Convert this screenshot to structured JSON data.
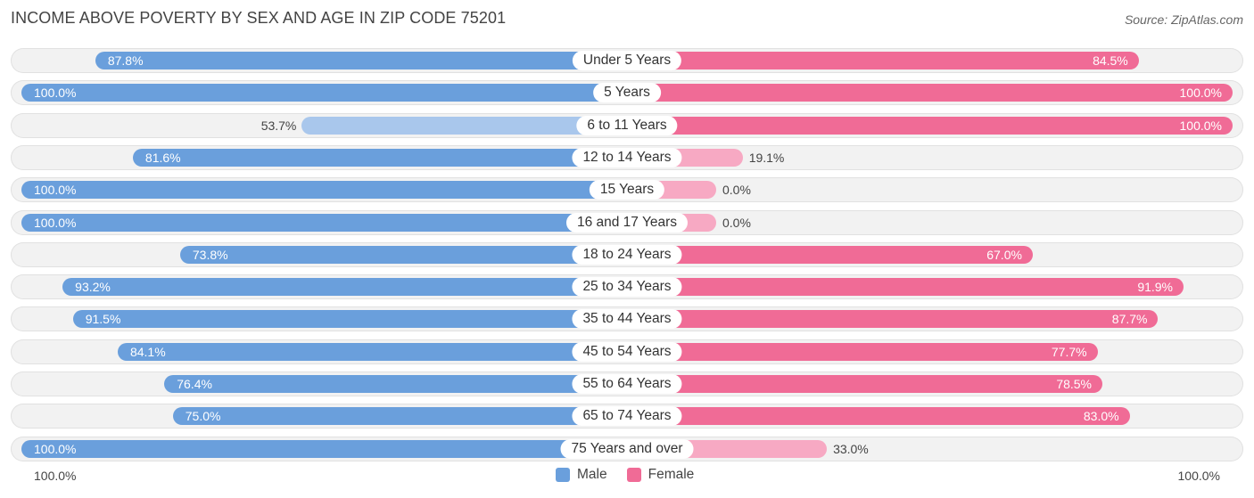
{
  "chart_data": {
    "type": "bar",
    "orientation": "horizontal-diverging",
    "title": "INCOME ABOVE POVERTY BY SEX AND AGE IN ZIP CODE 75201",
    "source": "Source: ZipAtlas.com",
    "categories": [
      "Under 5 Years",
      "5 Years",
      "6 to 11 Years",
      "12 to 14 Years",
      "15 Years",
      "16 and 17 Years",
      "18 to 24 Years",
      "25 to 34 Years",
      "35 to 44 Years",
      "45 to 54 Years",
      "55 to 64 Years",
      "65 to 74 Years",
      "75 Years and over"
    ],
    "series": [
      {
        "name": "Male",
        "color": "#6a9fdc",
        "values": [
          87.8,
          100.0,
          53.7,
          81.6,
          100.0,
          100.0,
          73.8,
          93.2,
          91.5,
          84.1,
          76.4,
          75.0,
          100.0
        ],
        "labels": [
          "87.8%",
          "100.0%",
          "53.7%",
          "81.6%",
          "100.0%",
          "100.0%",
          "73.8%",
          "93.2%",
          "91.5%",
          "84.1%",
          "76.4%",
          "75.0%",
          "100.0%"
        ]
      },
      {
        "name": "Female",
        "color": "#f06b96",
        "values": [
          84.5,
          100.0,
          100.0,
          19.1,
          0.0,
          0.0,
          67.0,
          91.9,
          87.7,
          77.7,
          78.5,
          83.0,
          33.0
        ],
        "labels": [
          "84.5%",
          "100.0%",
          "100.0%",
          "19.1%",
          "0.0%",
          "0.0%",
          "67.0%",
          "91.9%",
          "87.7%",
          "77.7%",
          "78.5%",
          "83.0%",
          "33.0%"
        ]
      }
    ],
    "xlim": [
      0,
      100
    ],
    "axis_left_label": "100.0%",
    "axis_right_label": "100.0%",
    "legend_position": "bottom-center"
  }
}
